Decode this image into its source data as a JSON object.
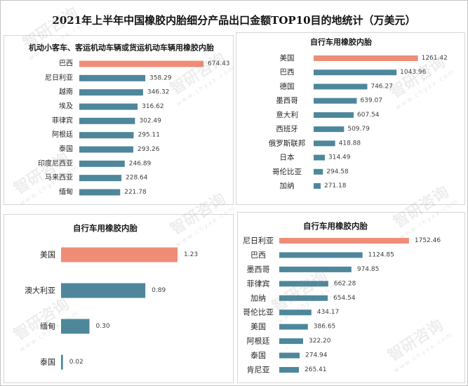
{
  "title": "2021年上半年中国橡胶内胎细分产品出口金额TOP10目的地统计（万美元）",
  "colors": {
    "highlight_bar": "#ef8d77",
    "bar": "#4e879c"
  },
  "watermark": {
    "brand": "智研咨询",
    "url": "www.chyxx.com"
  },
  "chart_data": [
    {
      "type": "bar",
      "orientation": "horizontal",
      "title": "机动小客车、客运机动车辆或货运机动车辆用橡胶内胎",
      "categories": [
        "巴西",
        "尼日利亚",
        "越南",
        "埃及",
        "菲律宾",
        "阿根廷",
        "泰国",
        "印度尼西亚",
        "马来西亚",
        "缅甸"
      ],
      "values": [
        674.43,
        358.29,
        346.32,
        316.62,
        302.49,
        295.11,
        293.26,
        246.89,
        228.64,
        221.78
      ],
      "xlim": [
        0,
        800
      ],
      "grid": false
    },
    {
      "type": "bar",
      "orientation": "horizontal",
      "title": "自行车用橡胶内胎",
      "categories": [
        "美国",
        "巴西",
        "德国",
        "墨西哥",
        "意大利",
        "西班牙",
        "俄罗斯联邦",
        "日本",
        "哥伦比亚",
        "加纳"
      ],
      "values": [
        1261.42,
        1043.96,
        746.27,
        639.07,
        607.54,
        509.79,
        418.88,
        314.49,
        294.58,
        271.18
      ],
      "xlim": [
        200,
        1400
      ],
      "grid": false
    },
    {
      "type": "bar",
      "orientation": "horizontal",
      "title": "自行车用橡胶内胎",
      "categories": [
        "美国",
        "澳大利亚",
        "缅甸",
        "泰国"
      ],
      "values": [
        1.23,
        0.89,
        0.3,
        0.02
      ],
      "xlim": [
        0,
        1.4
      ],
      "grid": false
    },
    {
      "type": "bar",
      "orientation": "horizontal",
      "title": "自行车用橡胶内胎",
      "categories": [
        "尼日利亚",
        "巴西",
        "墨西哥",
        "菲律宾",
        "加纳",
        "哥伦比亚",
        "美国",
        "阿根廷",
        "泰国",
        "肯尼亚"
      ],
      "values": [
        1752.46,
        1124.85,
        974.85,
        662.28,
        654.54,
        434.17,
        386.65,
        322.2,
        274.94,
        265.41
      ],
      "xlim": [
        0,
        2000
      ],
      "grid": false
    }
  ]
}
